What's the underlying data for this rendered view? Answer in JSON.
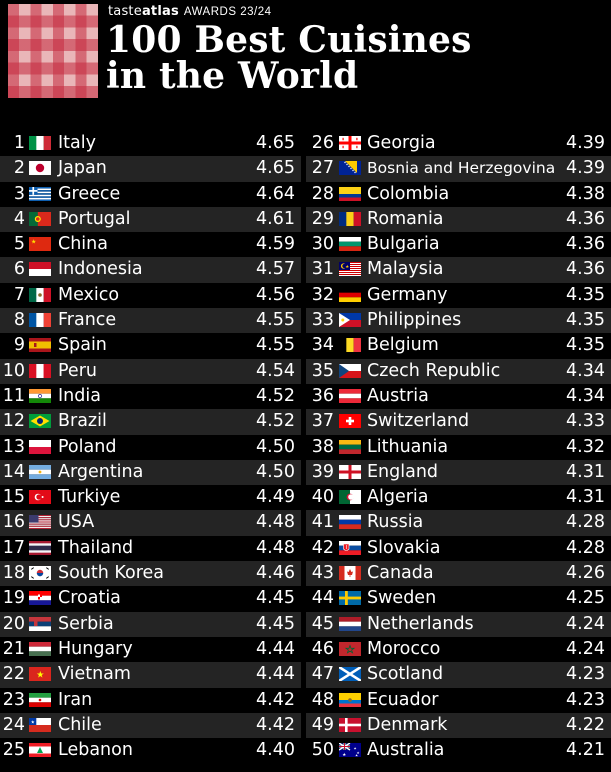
{
  "brand": {
    "part1": "taste",
    "part2": "atlas",
    "awards": "AWARDS 23/24"
  },
  "title": {
    "line1": "100 Best Cuisines",
    "line2": "in the World"
  },
  "rankings": [
    {
      "rank": "1",
      "name": "Italy",
      "score": "4.65",
      "flag": "italy-flag-icon"
    },
    {
      "rank": "2",
      "name": "Japan",
      "score": "4.65",
      "flag": "japan-flag-icon"
    },
    {
      "rank": "3",
      "name": "Greece",
      "score": "4.64",
      "flag": "greece-flag-icon"
    },
    {
      "rank": "4",
      "name": "Portugal",
      "score": "4.61",
      "flag": "portugal-flag-icon"
    },
    {
      "rank": "5",
      "name": "China",
      "score": "4.59",
      "flag": "china-flag-icon"
    },
    {
      "rank": "6",
      "name": "Indonesia",
      "score": "4.57",
      "flag": "indonesia-flag-icon"
    },
    {
      "rank": "7",
      "name": "Mexico",
      "score": "4.56",
      "flag": "mexico-flag-icon"
    },
    {
      "rank": "8",
      "name": "France",
      "score": "4.55",
      "flag": "france-flag-icon"
    },
    {
      "rank": "9",
      "name": "Spain",
      "score": "4.55",
      "flag": "spain-flag-icon"
    },
    {
      "rank": "10",
      "name": "Peru",
      "score": "4.54",
      "flag": "peru-flag-icon"
    },
    {
      "rank": "11",
      "name": "India",
      "score": "4.52",
      "flag": "india-flag-icon"
    },
    {
      "rank": "12",
      "name": "Brazil",
      "score": "4.52",
      "flag": "brazil-flag-icon"
    },
    {
      "rank": "13",
      "name": "Poland",
      "score": "4.50",
      "flag": "poland-flag-icon"
    },
    {
      "rank": "14",
      "name": "Argentina",
      "score": "4.50",
      "flag": "argentina-flag-icon"
    },
    {
      "rank": "15",
      "name": "Turkiye",
      "score": "4.49",
      "flag": "turkiye-flag-icon"
    },
    {
      "rank": "16",
      "name": "USA",
      "score": "4.48",
      "flag": "usa-flag-icon"
    },
    {
      "rank": "17",
      "name": "Thailand",
      "score": "4.48",
      "flag": "thailand-flag-icon"
    },
    {
      "rank": "18",
      "name": "South Korea",
      "score": "4.46",
      "flag": "south-korea-flag-icon"
    },
    {
      "rank": "19",
      "name": "Croatia",
      "score": "4.45",
      "flag": "croatia-flag-icon"
    },
    {
      "rank": "20",
      "name": "Serbia",
      "score": "4.45",
      "flag": "serbia-flag-icon"
    },
    {
      "rank": "21",
      "name": "Hungary",
      "score": "4.44",
      "flag": "hungary-flag-icon"
    },
    {
      "rank": "22",
      "name": "Vietnam",
      "score": "4.44",
      "flag": "vietnam-flag-icon"
    },
    {
      "rank": "23",
      "name": "Iran",
      "score": "4.42",
      "flag": "iran-flag-icon"
    },
    {
      "rank": "24",
      "name": "Chile",
      "score": "4.42",
      "flag": "chile-flag-icon"
    },
    {
      "rank": "25",
      "name": "Lebanon",
      "score": "4.40",
      "flag": "lebanon-flag-icon"
    },
    {
      "rank": "26",
      "name": "Georgia",
      "score": "4.39",
      "flag": "georgia-flag-icon"
    },
    {
      "rank": "27",
      "name": "Bosnia and Herzegovina",
      "score": "4.39",
      "flag": "bosnia-flag-icon"
    },
    {
      "rank": "28",
      "name": "Colombia",
      "score": "4.38",
      "flag": "colombia-flag-icon"
    },
    {
      "rank": "29",
      "name": "Romania",
      "score": "4.36",
      "flag": "romania-flag-icon"
    },
    {
      "rank": "30",
      "name": "Bulgaria",
      "score": "4.36",
      "flag": "bulgaria-flag-icon"
    },
    {
      "rank": "31",
      "name": "Malaysia",
      "score": "4.36",
      "flag": "malaysia-flag-icon"
    },
    {
      "rank": "32",
      "name": "Germany",
      "score": "4.35",
      "flag": "germany-flag-icon"
    },
    {
      "rank": "33",
      "name": "Philippines",
      "score": "4.35",
      "flag": "philippines-flag-icon"
    },
    {
      "rank": "34",
      "name": "Belgium",
      "score": "4.35",
      "flag": "belgium-flag-icon"
    },
    {
      "rank": "35",
      "name": "Czech Republic",
      "score": "4.34",
      "flag": "czech-flag-icon"
    },
    {
      "rank": "36",
      "name": "Austria",
      "score": "4.34",
      "flag": "austria-flag-icon"
    },
    {
      "rank": "37",
      "name": "Switzerland",
      "score": "4.33",
      "flag": "switzerland-flag-icon"
    },
    {
      "rank": "38",
      "name": "Lithuania",
      "score": "4.32",
      "flag": "lithuania-flag-icon"
    },
    {
      "rank": "39",
      "name": "England",
      "score": "4.31",
      "flag": "england-flag-icon"
    },
    {
      "rank": "40",
      "name": "Algeria",
      "score": "4.31",
      "flag": "algeria-flag-icon"
    },
    {
      "rank": "41",
      "name": "Russia",
      "score": "4.28",
      "flag": "russia-flag-icon"
    },
    {
      "rank": "42",
      "name": "Slovakia",
      "score": "4.28",
      "flag": "slovakia-flag-icon"
    },
    {
      "rank": "43",
      "name": "Canada",
      "score": "4.26",
      "flag": "canada-flag-icon"
    },
    {
      "rank": "44",
      "name": "Sweden",
      "score": "4.25",
      "flag": "sweden-flag-icon"
    },
    {
      "rank": "45",
      "name": "Netherlands",
      "score": "4.24",
      "flag": "netherlands-flag-icon"
    },
    {
      "rank": "46",
      "name": "Morocco",
      "score": "4.24",
      "flag": "morocco-flag-icon"
    },
    {
      "rank": "47",
      "name": "Scotland",
      "score": "4.23",
      "flag": "scotland-flag-icon"
    },
    {
      "rank": "48",
      "name": "Ecuador",
      "score": "4.23",
      "flag": "ecuador-flag-icon"
    },
    {
      "rank": "49",
      "name": "Denmark",
      "score": "4.22",
      "flag": "denmark-flag-icon"
    },
    {
      "rank": "50",
      "name": "Australia",
      "score": "4.21",
      "flag": "australia-flag-icon"
    }
  ]
}
